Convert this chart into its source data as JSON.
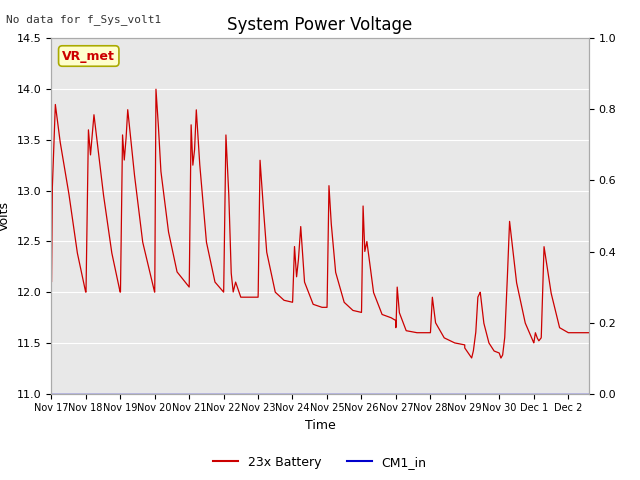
{
  "title": "System Power Voltage",
  "top_left_text": "No data for f_Sys_volt1",
  "ylabel": "Volts",
  "xlabel": "Time",
  "ylim_left": [
    11.0,
    14.5
  ],
  "ylim_right": [
    0.0,
    1.0
  ],
  "yticks_left": [
    11.0,
    11.5,
    12.0,
    12.5,
    13.0,
    13.5,
    14.0,
    14.5
  ],
  "yticks_right": [
    0.0,
    0.2,
    0.4,
    0.6,
    0.8,
    1.0
  ],
  "xtick_labels": [
    "Nov 17",
    "Nov 18",
    "Nov 19",
    "Nov 20",
    "Nov 21",
    "Nov 22",
    "Nov 23",
    "Nov 24",
    "Nov 25",
    "Nov 26",
    "Nov 27",
    "Nov 28",
    "Nov 29",
    "Nov 30",
    "Dec 1",
    "Dec 2"
  ],
  "legend_entries": [
    "23x Battery",
    "CM1_in"
  ],
  "legend_colors": [
    "#cc0000",
    "#0000cc"
  ],
  "battery_color": "#cc0000",
  "cm1_color": "#0000cc",
  "background_color": "#ffffff",
  "plot_bg_color": "#e8e8e8",
  "grid_color": "#ffffff",
  "title_fontsize": 12,
  "label_fontsize": 9,
  "tick_fontsize": 8,
  "vr_met_label": "VR_met",
  "vr_met_bg": "#ffffcc",
  "vr_met_fg": "#cc0000"
}
